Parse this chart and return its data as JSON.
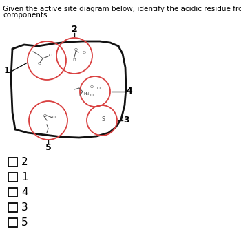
{
  "title_text": "Given the active site diagram below, identify the acidic residue from the indicated\ncomponents.",
  "title_fontsize": 7.5,
  "background_color": "#ffffff",
  "choices": [
    "2",
    "1",
    "4",
    "3",
    "5"
  ],
  "choice_fontsize": 11,
  "diagram": {
    "circle_color": "#d94040",
    "circle_lw": 1.3
  }
}
